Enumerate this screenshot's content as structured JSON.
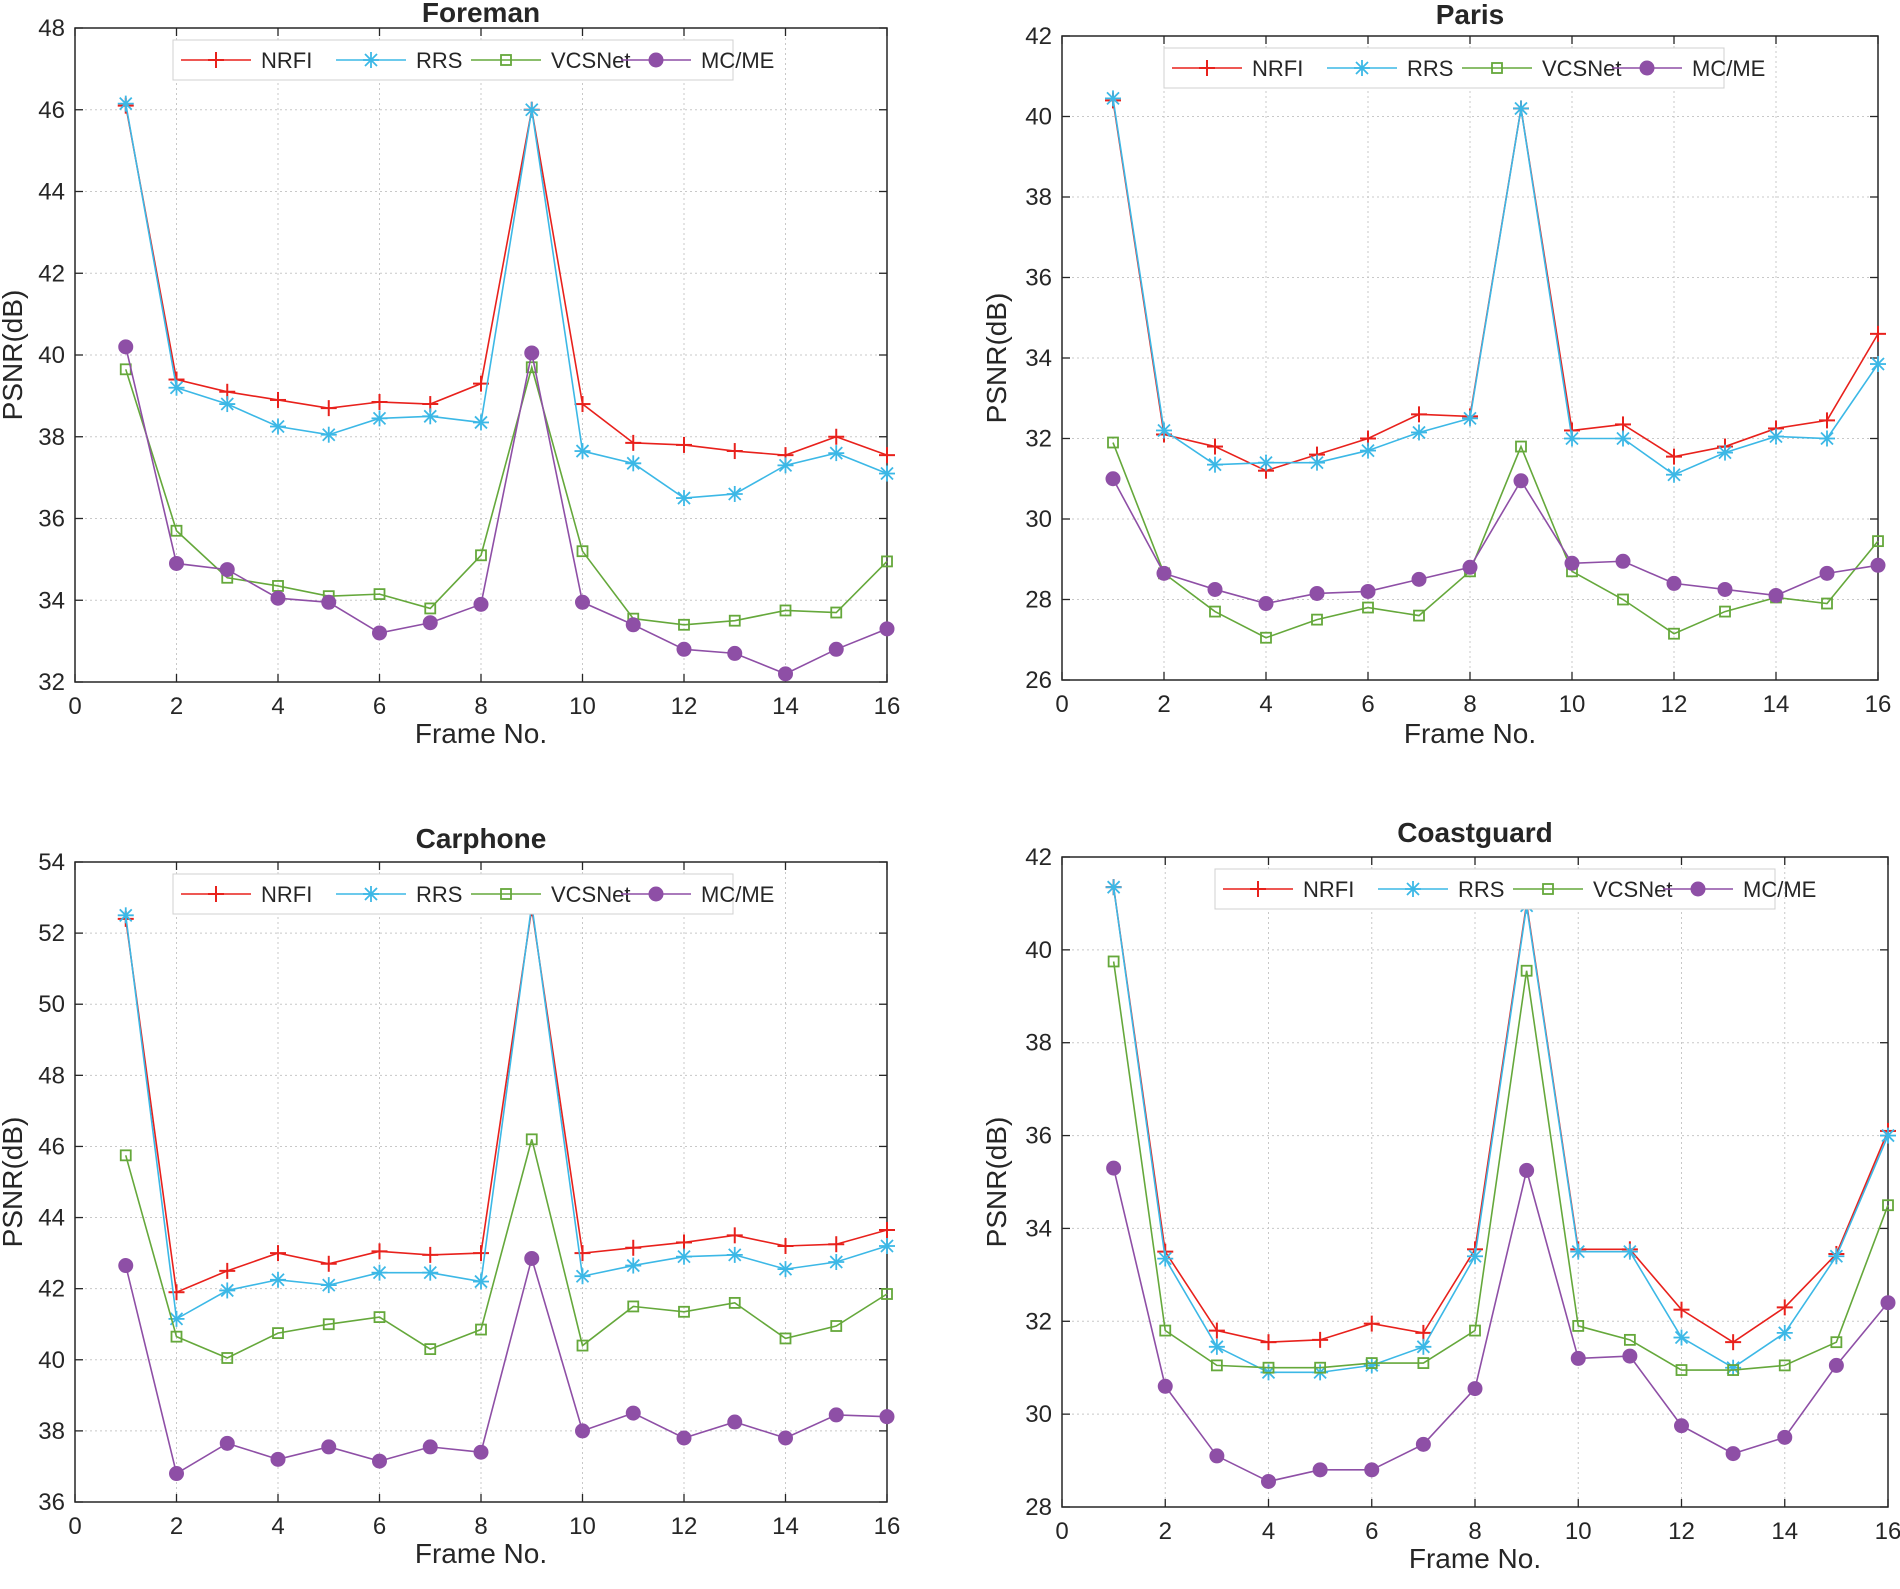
{
  "figure": {
    "xlabel": "Frame No.",
    "ylabel": "PSNR(dB)",
    "series_names": [
      "NRFI",
      "RRS",
      "VCSNet",
      "MC/ME"
    ],
    "colors": {
      "NRFI": "#e8211c",
      "RRS": "#3cb8e6",
      "VCSNet": "#65a83b",
      "MC/ME": "#8e4fa6",
      "grid": "#c8c8c8",
      "axis": "#262626"
    }
  },
  "chart_data": [
    {
      "type": "line",
      "title": "Foreman",
      "xlabel": "Frame No.",
      "ylabel": "PSNR(dB)",
      "xlim": [
        0,
        16
      ],
      "ylim": [
        32,
        48
      ],
      "xticks": [
        0,
        2,
        4,
        6,
        8,
        10,
        12,
        14,
        16
      ],
      "yticks": [
        32,
        34,
        36,
        38,
        40,
        42,
        44,
        46,
        48
      ],
      "grid": true,
      "legend": "top",
      "x": [
        1,
        2,
        3,
        4,
        5,
        6,
        7,
        8,
        9,
        10,
        11,
        12,
        13,
        14,
        15,
        16
      ],
      "series": [
        {
          "name": "NRFI",
          "values": [
            46.1,
            39.4,
            39.1,
            38.9,
            38.7,
            38.85,
            38.8,
            39.3,
            46.0,
            38.8,
            37.85,
            37.8,
            37.65,
            37.55,
            38.0,
            37.55
          ]
        },
        {
          "name": "RRS",
          "values": [
            46.15,
            39.2,
            38.8,
            38.25,
            38.05,
            38.45,
            38.5,
            38.35,
            46.0,
            37.65,
            37.35,
            36.5,
            36.6,
            37.3,
            37.6,
            37.1
          ]
        },
        {
          "name": "VCSNet",
          "values": [
            39.65,
            35.7,
            34.55,
            34.35,
            34.1,
            34.15,
            33.8,
            35.1,
            39.7,
            35.2,
            33.55,
            33.4,
            33.5,
            33.75,
            33.7,
            34.95
          ]
        },
        {
          "name": "MC/ME",
          "values": [
            40.2,
            34.9,
            34.75,
            34.05,
            33.95,
            33.2,
            33.45,
            33.9,
            40.05,
            33.95,
            33.4,
            32.8,
            32.7,
            32.2,
            32.8,
            33.3
          ]
        }
      ]
    },
    {
      "type": "line",
      "title": "Paris",
      "xlabel": "Frame No.",
      "ylabel": "PSNR(dB)",
      "xlim": [
        0,
        16
      ],
      "ylim": [
        26,
        42
      ],
      "xticks": [
        0,
        2,
        4,
        6,
        8,
        10,
        12,
        14,
        16
      ],
      "yticks": [
        26,
        28,
        30,
        32,
        34,
        36,
        38,
        40,
        42
      ],
      "grid": true,
      "legend": "top",
      "x": [
        1,
        2,
        3,
        4,
        5,
        6,
        7,
        8,
        9,
        10,
        11,
        12,
        13,
        14,
        15,
        16
      ],
      "series": [
        {
          "name": "NRFI",
          "values": [
            40.4,
            32.1,
            31.8,
            31.2,
            31.6,
            32.0,
            32.6,
            32.55,
            40.2,
            32.2,
            32.35,
            31.55,
            31.8,
            32.25,
            32.45,
            34.6
          ]
        },
        {
          "name": "RRS",
          "values": [
            40.45,
            32.2,
            31.35,
            31.4,
            31.4,
            31.7,
            32.15,
            32.5,
            40.2,
            32.0,
            32.0,
            31.1,
            31.65,
            32.05,
            32.0,
            33.85
          ]
        },
        {
          "name": "VCSNet",
          "values": [
            31.9,
            28.65,
            27.7,
            27.05,
            27.5,
            27.8,
            27.6,
            28.7,
            31.8,
            28.7,
            28.0,
            27.15,
            27.7,
            28.05,
            27.9,
            29.45
          ]
        },
        {
          "name": "MC/ME",
          "values": [
            31.0,
            28.65,
            28.25,
            27.9,
            28.15,
            28.2,
            28.5,
            28.8,
            30.95,
            28.9,
            28.95,
            28.4,
            28.25,
            28.1,
            28.65,
            28.85
          ]
        }
      ]
    },
    {
      "type": "line",
      "title": "Carphone",
      "xlabel": "Frame No.",
      "ylabel": "PSNR(dB)",
      "xlim": [
        0,
        16
      ],
      "ylim": [
        36,
        54
      ],
      "xticks": [
        0,
        2,
        4,
        6,
        8,
        10,
        12,
        14,
        16
      ],
      "yticks": [
        36,
        38,
        40,
        42,
        44,
        46,
        48,
        50,
        52,
        54
      ],
      "grid": true,
      "legend": "top",
      "x": [
        1,
        2,
        3,
        4,
        5,
        6,
        7,
        8,
        9,
        10,
        11,
        12,
        13,
        14,
        15,
        16
      ],
      "series": [
        {
          "name": "NRFI",
          "values": [
            52.4,
            41.9,
            42.5,
            43.0,
            42.7,
            43.05,
            42.95,
            43.0,
            52.7,
            43.0,
            43.15,
            43.3,
            43.5,
            43.2,
            43.25,
            43.65
          ]
        },
        {
          "name": "RRS",
          "values": [
            52.5,
            41.15,
            41.95,
            42.25,
            42.1,
            42.45,
            42.45,
            42.2,
            52.8,
            42.35,
            42.65,
            42.9,
            42.95,
            42.55,
            42.75,
            43.2
          ]
        },
        {
          "name": "VCSNet",
          "values": [
            45.75,
            40.65,
            40.05,
            40.75,
            41.0,
            41.2,
            40.3,
            40.85,
            46.2,
            40.4,
            41.5,
            41.35,
            41.6,
            40.6,
            40.95,
            41.85
          ]
        },
        {
          "name": "MC/ME",
          "values": [
            42.65,
            36.8,
            37.65,
            37.2,
            37.55,
            37.15,
            37.55,
            37.4,
            42.85,
            38.0,
            38.5,
            37.8,
            38.25,
            37.8,
            38.45,
            38.4
          ]
        }
      ]
    },
    {
      "type": "line",
      "title": "Coastguard",
      "xlabel": "Frame No.",
      "ylabel": "PSNR(dB)",
      "xlim": [
        0,
        16
      ],
      "ylim": [
        28,
        42
      ],
      "xticks": [
        0,
        2,
        4,
        6,
        8,
        10,
        12,
        14,
        16
      ],
      "yticks": [
        28,
        30,
        32,
        34,
        36,
        38,
        40,
        42
      ],
      "grid": true,
      "legend": "top",
      "x": [
        1,
        2,
        3,
        4,
        5,
        6,
        7,
        8,
        9,
        10,
        11,
        12,
        13,
        14,
        15,
        16
      ],
      "series": [
        {
          "name": "NRFI",
          "values": [
            41.35,
            33.5,
            31.8,
            31.55,
            31.6,
            31.95,
            31.75,
            33.55,
            41.0,
            33.55,
            33.55,
            32.25,
            31.55,
            32.3,
            33.45,
            36.1
          ]
        },
        {
          "name": "RRS",
          "values": [
            41.35,
            33.35,
            31.45,
            30.9,
            30.9,
            31.05,
            31.45,
            33.4,
            40.95,
            33.5,
            33.5,
            31.65,
            31.0,
            31.75,
            33.4,
            36.0
          ]
        },
        {
          "name": "VCSNet",
          "values": [
            39.75,
            31.8,
            31.05,
            31.0,
            31.0,
            31.1,
            31.1,
            31.8,
            39.55,
            31.9,
            31.6,
            30.95,
            30.95,
            31.05,
            31.55,
            34.5
          ]
        },
        {
          "name": "MC/ME",
          "values": [
            35.3,
            30.6,
            29.1,
            28.55,
            28.8,
            28.8,
            29.35,
            30.55,
            35.25,
            31.2,
            31.25,
            29.75,
            29.15,
            29.5,
            31.05,
            32.4
          ]
        }
      ]
    }
  ]
}
